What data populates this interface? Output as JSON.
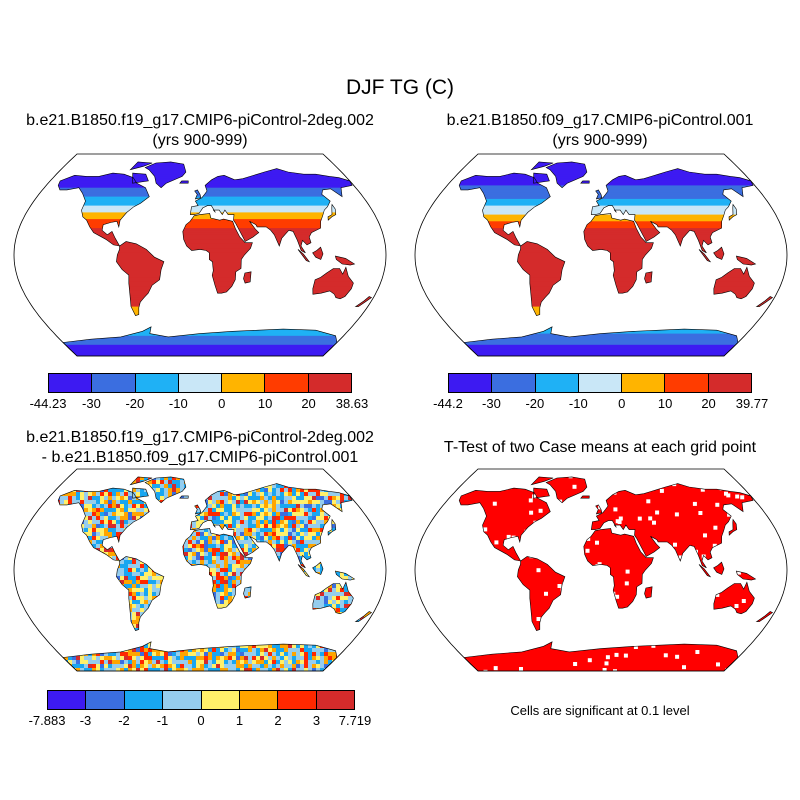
{
  "figure": {
    "title": "DJF TG (C)"
  },
  "panels": [
    {
      "title_line1": "b.e21.B1850.f19_g17.CMIP6-piControl-2deg.002",
      "title_line2": "(yrs 900-999)"
    },
    {
      "title_line1": "b.e21.B1850.f09_g17.CMIP6-piControl.001",
      "title_line2": "(yrs 900-999)"
    },
    {
      "title_line1": "b.e21.B1850.f19_g17.CMIP6-piControl-2deg.002",
      "title_line2": "- b.e21.B1850.f09_g17.CMIP6-piControl.001"
    },
    {
      "title_line1": "T-Test of two Case means at each grid point",
      "title_line2": ""
    }
  ],
  "colorbars": [
    {
      "colors": [
        "#3d1af2",
        "#3b6ee0",
        "#1fb1f5",
        "#c9e7f7",
        "#ffb400",
        "#ff3c00",
        "#d42b2b"
      ],
      "labels": [
        "-44.23",
        "-30",
        "-20",
        "-10",
        "0",
        "10",
        "20",
        "38.63"
      ]
    },
    {
      "colors": [
        "#3d1af2",
        "#3b6ee0",
        "#1fb1f5",
        "#c9e7f7",
        "#ffb400",
        "#ff3c00",
        "#d42b2b"
      ],
      "labels": [
        "-44.2",
        "-30",
        "-20",
        "-10",
        "0",
        "10",
        "20",
        "39.77"
      ]
    },
    {
      "colors": [
        "#3d1af2",
        "#3b6ee0",
        "#19a6f0",
        "#95cdee",
        "#fff06a",
        "#ffa500",
        "#ff2800",
        "#d42b2b"
      ],
      "labels": [
        "-7.883",
        "-3",
        "-2",
        "-1",
        "0",
        "1",
        "2",
        "3",
        "7.719"
      ]
    }
  ],
  "significance": {
    "note": "Cells are significant at 0.1 level",
    "color": "#ff0000"
  }
}
